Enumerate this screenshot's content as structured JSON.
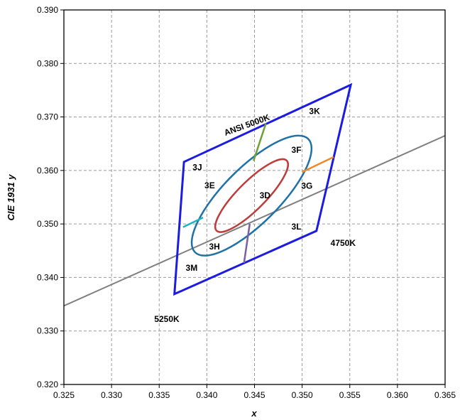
{
  "chart_data": {
    "type": "scatter",
    "xlabel": "x",
    "ylabel": "CIE 1931 y",
    "xlim": [
      0.325,
      0.365
    ],
    "ylim": [
      0.32,
      0.39
    ],
    "x_ticks": [
      "0.325",
      "0.330",
      "0.335",
      "0.340",
      "0.345",
      "0.350",
      "0.355",
      "0.360",
      "0.365"
    ],
    "y_ticks": [
      "0.320",
      "0.330",
      "0.340",
      "0.350",
      "0.360",
      "0.370",
      "0.380",
      "0.390"
    ],
    "grid": true,
    "colors": {
      "quad": "#1c1ce0",
      "outer_ellipse": "#1f72a8",
      "inner_ellipse": "#be3c3c",
      "planckian": "#808080",
      "div_top": "#6da336",
      "div_right": "#ef8a2c",
      "div_left": "#20b2c4",
      "div_bottom": "#7c5fa0"
    },
    "quadrangle": [
      {
        "x": 0.3551,
        "y": 0.376
      },
      {
        "x": 0.3376,
        "y": 0.3616
      },
      {
        "x": 0.3366,
        "y": 0.3369
      },
      {
        "x": 0.3515,
        "y": 0.3487
      }
    ],
    "planckian_line": [
      {
        "x": 0.325,
        "y": 0.3347
      },
      {
        "x": 0.365,
        "y": 0.3665
      }
    ],
    "outer_ellipse": {
      "center": [
        0.3447,
        0.3553
      ],
      "a": 0.0084,
      "b": 0.0052,
      "angle_deg": 45
    },
    "inner_ellipse": {
      "center": [
        0.3447,
        0.3553
      ],
      "a": 0.0052,
      "b": 0.0026,
      "angle_deg": 45
    },
    "dividers": [
      {
        "id": "top",
        "from": [
          0.3449,
          0.3618
        ],
        "to": [
          0.3462,
          0.3688
        ]
      },
      {
        "id": "right",
        "from": [
          0.35,
          0.3597
        ],
        "to": [
          0.3533,
          0.3625
        ]
      },
      {
        "id": "left",
        "from": [
          0.3396,
          0.3512
        ],
        "to": [
          0.3375,
          0.3494
        ]
      },
      {
        "id": "bottom",
        "from": [
          0.3445,
          0.35
        ],
        "to": [
          0.3439,
          0.3427
        ]
      }
    ],
    "annotations": [
      {
        "text": "ANSI 5000K",
        "x": 0.3442,
        "y": 0.3685,
        "rotate": -20
      },
      {
        "text": "3K",
        "x": 0.3513,
        "y": 0.3711,
        "rotate": 0
      },
      {
        "text": "3J",
        "x": 0.339,
        "y": 0.3606,
        "rotate": 0
      },
      {
        "text": "3F",
        "x": 0.3494,
        "y": 0.3638,
        "rotate": 0
      },
      {
        "text": "3E",
        "x": 0.3403,
        "y": 0.3572,
        "rotate": 0
      },
      {
        "text": "3D",
        "x": 0.3461,
        "y": 0.3553,
        "rotate": 0
      },
      {
        "text": "3G",
        "x": 0.3505,
        "y": 0.3571,
        "rotate": 0
      },
      {
        "text": "3L",
        "x": 0.3494,
        "y": 0.3495,
        "rotate": 0
      },
      {
        "text": "4750K",
        "x": 0.3543,
        "y": 0.3464,
        "rotate": 0
      },
      {
        "text": "3H",
        "x": 0.3408,
        "y": 0.3458,
        "rotate": 0
      },
      {
        "text": "3M",
        "x": 0.3384,
        "y": 0.3418,
        "rotate": 0
      },
      {
        "text": "5250K",
        "x": 0.3358,
        "y": 0.3322,
        "rotate": 0
      }
    ]
  }
}
